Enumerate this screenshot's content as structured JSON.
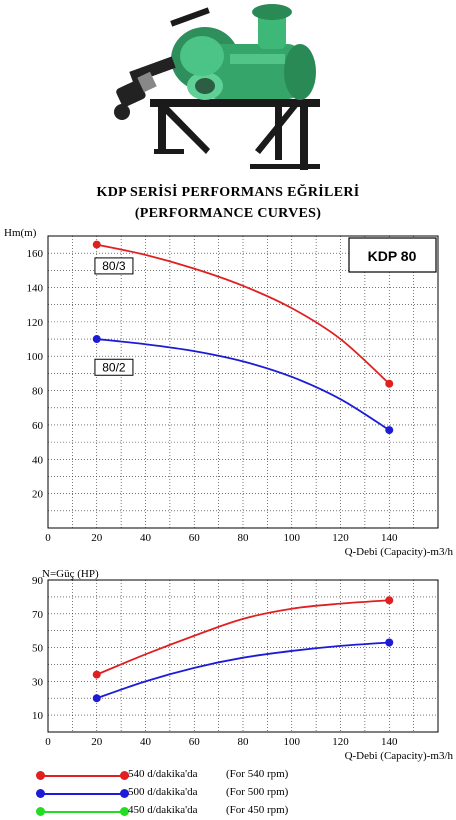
{
  "title_line1": "KDP SERİSİ  PERFORMANS EĞRİLERİ",
  "title_line2": "(PERFORMANCE CURVES)",
  "colors": {
    "red": "#e02020",
    "blue": "#1c1cd6",
    "green": "#22dd22",
    "grid": "#222222"
  },
  "chart_data": [
    {
      "type": "line",
      "title": "",
      "model_label": "KDP 80",
      "ylabel": "Hm(m)",
      "xlabel": "Q-Debi (Capacity)-m3/h",
      "xlim": [
        0,
        160
      ],
      "ylim": [
        0,
        170
      ],
      "xticks": [
        0,
        20,
        40,
        60,
        80,
        100,
        120,
        140
      ],
      "yticks": [
        20,
        40,
        60,
        80,
        100,
        120,
        140,
        160
      ],
      "grid": true,
      "series": [
        {
          "name": "80/3",
          "color": "#e02020",
          "x": [
            20,
            40,
            60,
            80,
            100,
            120,
            140
          ],
          "y": [
            165,
            159,
            151,
            141,
            128,
            110,
            84
          ]
        },
        {
          "name": "80/2",
          "color": "#1c1cd6",
          "x": [
            20,
            40,
            60,
            80,
            100,
            120,
            140
          ],
          "y": [
            110,
            107,
            103,
            97,
            88,
            75,
            57
          ]
        }
      ]
    },
    {
      "type": "line",
      "title": "",
      "ylabel": "N=Güç (HP)",
      "xlabel": "Q-Debi (Capacity)-m3/h",
      "xlim": [
        0,
        160
      ],
      "ylim": [
        0,
        90
      ],
      "xticks": [
        0,
        20,
        40,
        60,
        80,
        100,
        120,
        140
      ],
      "yticks": [
        10,
        30,
        50,
        70,
        90
      ],
      "grid": true,
      "series": [
        {
          "name": "540 d/dakika'da",
          "color": "#e02020",
          "x": [
            20,
            40,
            60,
            80,
            100,
            120,
            140
          ],
          "y": [
            34,
            46,
            57,
            67,
            73,
            76,
            78
          ]
        },
        {
          "name": "500 d/dakika'da",
          "color": "#1c1cd6",
          "x": [
            20,
            40,
            60,
            80,
            100,
            120,
            140
          ],
          "y": [
            20,
            30,
            38,
            44,
            48,
            51,
            53
          ]
        }
      ]
    }
  ],
  "legend": [
    {
      "label": "540 d/dakika'da",
      "rpm": "(For  540 rpm)",
      "color": "#e02020"
    },
    {
      "label": "500 d/dakika'da",
      "rpm": "(For  500 rpm)",
      "color": "#1c1cd6"
    },
    {
      "label": "450 d/dakika'da",
      "rpm": "(For  450 rpm)",
      "color": "#22dd22"
    }
  ]
}
